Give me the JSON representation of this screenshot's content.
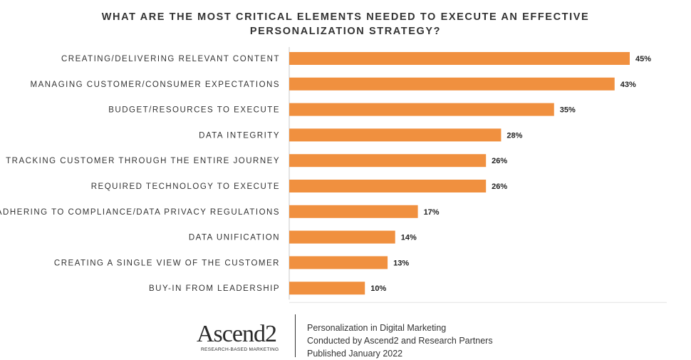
{
  "chart_data": {
    "type": "bar",
    "orientation": "horizontal",
    "title": "WHAT ARE THE MOST CRITICAL ELEMENTS NEEDED TO EXECUTE AN EFFECTIVE PERSONALIZATION STRATEGY?",
    "title_lines": [
      "WHAT ARE THE MOST CRITICAL ELEMENTS NEEDED TO EXECUTE AN EFFECTIVE",
      "PERSONALIZATION STRATEGY?"
    ],
    "categories": [
      "CREATING/DELIVERING RELEVANT CONTENT",
      "MANAGING CUSTOMER/CONSUMER EXPECTATIONS",
      "BUDGET/RESOURCES TO EXECUTE",
      "DATA INTEGRITY",
      "TRACKING CUSTOMER THROUGH THE ENTIRE JOURNEY",
      "REQUIRED TECHNOLOGY TO EXECUTE",
      "ADHERING TO COMPLIANCE/DATA PRIVACY REGULATIONS",
      "DATA UNIFICATION",
      "CREATING A SINGLE VIEW OF THE CUSTOMER",
      "BUY-IN FROM LEADERSHIP"
    ],
    "values": [
      45,
      43,
      35,
      28,
      26,
      26,
      17,
      14,
      13,
      10
    ],
    "value_labels": [
      "45%",
      "43%",
      "35%",
      "28%",
      "26%",
      "26%",
      "17%",
      "14%",
      "13%",
      "10%"
    ],
    "unit": "%",
    "xlim": [
      0,
      50
    ],
    "grid": false,
    "bar_color": "#f0903f",
    "axis_color": "#c8c8c8"
  },
  "footer": {
    "logo_name": "Ascend2",
    "logo_tagline": "RESEARCH-BASED MARKETING",
    "lines": [
      "Personalization in Digital Marketing",
      "Conducted by Ascend2 and Research Partners",
      "Published January 2022"
    ]
  }
}
